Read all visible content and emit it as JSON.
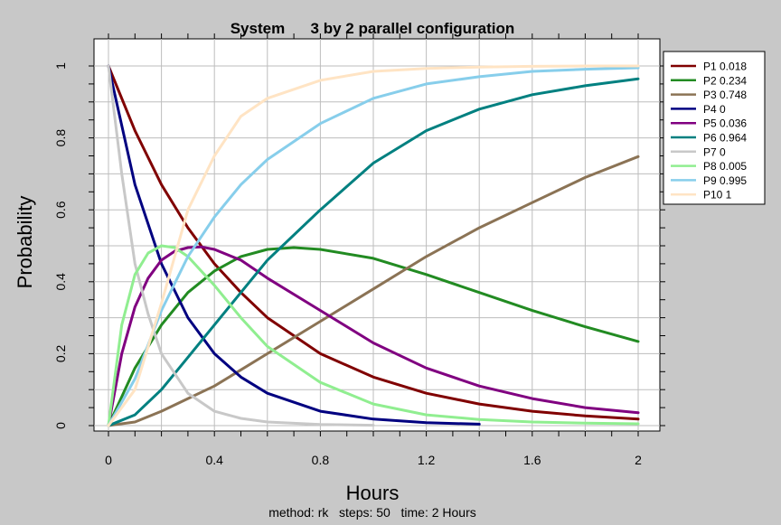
{
  "chart_data": {
    "type": "line",
    "title": "System      3 by 2 parallel configuration",
    "xlabel": "Hours",
    "ylabel": "Probability",
    "subtitle": "method: rk   steps: 50   time: 2 Hours",
    "xlim": [
      0,
      2
    ],
    "ylim": [
      0,
      1
    ],
    "x_ticks": [
      0,
      0.4,
      0.8,
      1.2,
      1.6,
      2
    ],
    "x_tick_labels": [
      "0",
      "0.4",
      "0.8",
      "1.2",
      "1.6",
      "2"
    ],
    "y_ticks": [
      0,
      0.2,
      0.4,
      0.6,
      0.8,
      1
    ],
    "y_tick_labels": [
      "0",
      "0.2",
      "0.4",
      "0.6",
      "0.8",
      "1"
    ],
    "grid": true,
    "legend_position": "right",
    "background_color": "#c8c8c8",
    "plot_background_color": "#ffffff",
    "series": [
      {
        "name": "P1 0.018",
        "color": "#800000",
        "x": [
          0,
          0.1,
          0.2,
          0.3,
          0.4,
          0.5,
          0.6,
          0.8,
          1.0,
          1.2,
          1.4,
          1.6,
          1.8,
          2.0
        ],
        "y": [
          1,
          0.82,
          0.67,
          0.55,
          0.45,
          0.37,
          0.3,
          0.2,
          0.135,
          0.09,
          0.06,
          0.04,
          0.027,
          0.018
        ]
      },
      {
        "name": "P2 0.234",
        "color": "#228b22",
        "x": [
          0,
          0.1,
          0.2,
          0.3,
          0.4,
          0.5,
          0.6,
          0.7,
          0.8,
          1.0,
          1.2,
          1.4,
          1.6,
          1.8,
          2.0
        ],
        "y": [
          0,
          0.16,
          0.28,
          0.37,
          0.43,
          0.47,
          0.49,
          0.495,
          0.49,
          0.465,
          0.42,
          0.37,
          0.32,
          0.275,
          0.234
        ]
      },
      {
        "name": "P3 0.748",
        "color": "#8b7355",
        "x": [
          0,
          0.1,
          0.2,
          0.3,
          0.4,
          0.5,
          0.6,
          0.8,
          1.0,
          1.2,
          1.4,
          1.6,
          1.8,
          2.0
        ],
        "y": [
          0,
          0.01,
          0.04,
          0.075,
          0.11,
          0.155,
          0.2,
          0.29,
          0.38,
          0.47,
          0.55,
          0.62,
          0.69,
          0.748
        ]
      },
      {
        "name": "P4 0",
        "color": "#000080",
        "x": [
          0,
          0.1,
          0.2,
          0.3,
          0.4,
          0.5,
          0.6,
          0.8,
          1.0,
          1.2,
          1.4
        ],
        "y": [
          1,
          0.67,
          0.45,
          0.3,
          0.2,
          0.135,
          0.09,
          0.04,
          0.018,
          0.008,
          0.004
        ]
      },
      {
        "name": "P5 0.036",
        "color": "#800080",
        "x": [
          0,
          0.05,
          0.1,
          0.15,
          0.2,
          0.25,
          0.3,
          0.35,
          0.4,
          0.5,
          0.6,
          0.8,
          1.0,
          1.2,
          1.4,
          1.6,
          1.8,
          2.0
        ],
        "y": [
          0,
          0.2,
          0.33,
          0.41,
          0.46,
          0.485,
          0.495,
          0.497,
          0.49,
          0.46,
          0.41,
          0.32,
          0.23,
          0.16,
          0.11,
          0.075,
          0.05,
          0.036
        ]
      },
      {
        "name": "P6 0.964",
        "color": "#008080",
        "x": [
          0,
          0.1,
          0.2,
          0.3,
          0.4,
          0.5,
          0.6,
          0.8,
          1.0,
          1.2,
          1.4,
          1.6,
          1.8,
          2.0
        ],
        "y": [
          0,
          0.03,
          0.1,
          0.19,
          0.28,
          0.37,
          0.46,
          0.6,
          0.73,
          0.82,
          0.88,
          0.92,
          0.945,
          0.964
        ]
      },
      {
        "name": "P7 0",
        "color": "#c8c8c8",
        "x": [
          0,
          0.05,
          0.1,
          0.15,
          0.2,
          0.3,
          0.4,
          0.5,
          0.6,
          0.8,
          1.0
        ],
        "y": [
          1,
          0.7,
          0.45,
          0.31,
          0.2,
          0.09,
          0.04,
          0.02,
          0.01,
          0.003,
          0.001
        ]
      },
      {
        "name": "P8 0.005",
        "color": "#90ee90",
        "x": [
          0,
          0.05,
          0.1,
          0.15,
          0.2,
          0.25,
          0.3,
          0.4,
          0.5,
          0.6,
          0.8,
          1.0,
          1.2,
          1.4,
          1.6,
          1.8,
          2.0
        ],
        "y": [
          0,
          0.28,
          0.42,
          0.48,
          0.5,
          0.495,
          0.47,
          0.39,
          0.3,
          0.22,
          0.12,
          0.06,
          0.03,
          0.017,
          0.01,
          0.007,
          0.005
        ]
      },
      {
        "name": "P9 0.995",
        "color": "#87ceeb",
        "x": [
          0,
          0.1,
          0.2,
          0.3,
          0.4,
          0.5,
          0.6,
          0.8,
          1.0,
          1.2,
          1.4,
          1.6,
          1.8,
          2.0
        ],
        "y": [
          0,
          0.13,
          0.32,
          0.47,
          0.58,
          0.67,
          0.74,
          0.84,
          0.91,
          0.95,
          0.97,
          0.985,
          0.991,
          0.995
        ]
      },
      {
        "name": "P10 1",
        "color": "#ffe4c4",
        "x": [
          0,
          0.1,
          0.2,
          0.3,
          0.4,
          0.5,
          0.6,
          0.8,
          1.0,
          1.2,
          1.4,
          1.6,
          1.8,
          2.0
        ],
        "y": [
          0,
          0.1,
          0.34,
          0.6,
          0.75,
          0.86,
          0.91,
          0.96,
          0.985,
          0.993,
          0.997,
          0.999,
          1,
          1
        ]
      }
    ]
  }
}
